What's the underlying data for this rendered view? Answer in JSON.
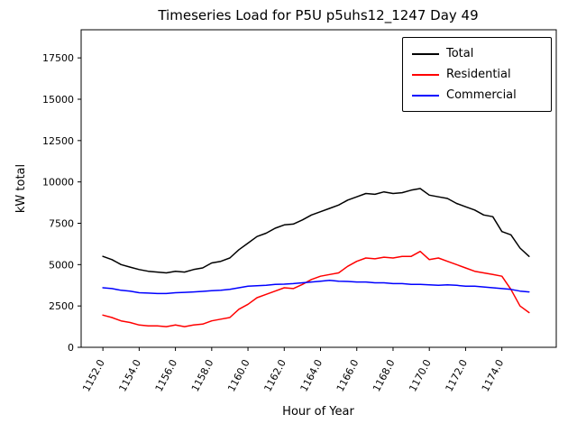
{
  "chart_data": {
    "type": "line",
    "title": "Timeseries Load for P5U p5uhs12_1247  Day 49",
    "xlabel": "Hour of Year",
    "ylabel": "kW total",
    "xlim": [
      1150.8,
      1177.0
    ],
    "ylim": [
      0,
      19200
    ],
    "grid": false,
    "legend_position": "upper right",
    "x_ticks": [
      1152,
      1154,
      1156,
      1158,
      1160,
      1162,
      1164,
      1166,
      1168,
      1170,
      1172,
      1174
    ],
    "x_tick_labels": [
      "1152.0",
      "1154.0",
      "1156.0",
      "1158.0",
      "1160.0",
      "1162.0",
      "1164.0",
      "1166.0",
      "1168.0",
      "1170.0",
      "1172.0",
      "1174.0"
    ],
    "y_ticks": [
      0,
      2500,
      5000,
      7500,
      10000,
      12500,
      15000,
      17500
    ],
    "y_tick_labels": [
      "0",
      "2500",
      "5000",
      "7500",
      "10000",
      "12500",
      "15000",
      "17500"
    ],
    "x": [
      1152.0,
      1152.5,
      1153.0,
      1153.5,
      1154.0,
      1154.5,
      1155.0,
      1155.5,
      1156.0,
      1156.5,
      1157.0,
      1157.5,
      1158.0,
      1158.5,
      1159.0,
      1159.5,
      1160.0,
      1160.5,
      1161.0,
      1161.5,
      1162.0,
      1162.5,
      1163.0,
      1163.5,
      1164.0,
      1164.5,
      1165.0,
      1165.5,
      1166.0,
      1166.5,
      1167.0,
      1167.5,
      1168.0,
      1168.5,
      1169.0,
      1169.5,
      1170.0,
      1170.5,
      1171.0,
      1171.5,
      1172.0,
      1172.5,
      1173.0,
      1173.5,
      1174.0,
      1174.5,
      1175.0,
      1175.5
    ],
    "series": [
      {
        "name": "Total",
        "color": "#000000",
        "values": [
          5500,
          5300,
          5000,
          4850,
          4700,
          4600,
          4550,
          4500,
          4600,
          4550,
          4700,
          4800,
          5100,
          5200,
          5400,
          5900,
          6300,
          6700,
          6900,
          7200,
          7400,
          7450,
          7700,
          8000,
          8200,
          8400,
          8600,
          8900,
          9100,
          9300,
          9250,
          9400,
          9300,
          9350,
          9500,
          9600,
          9200,
          9100,
          9000,
          8700,
          8500,
          8300,
          8000,
          7900,
          7000,
          6800,
          6000,
          5500
        ]
      },
      {
        "name": "Residential",
        "color": "#ff0000",
        "values": [
          1950,
          1800,
          1600,
          1500,
          1350,
          1300,
          1300,
          1250,
          1350,
          1250,
          1350,
          1400,
          1600,
          1700,
          1800,
          2300,
          2600,
          3000,
          3200,
          3400,
          3600,
          3550,
          3800,
          4100,
          4300,
          4400,
          4500,
          4900,
          5200,
          5400,
          5350,
          5450,
          5400,
          5500,
          5500,
          5800,
          5300,
          5400,
          5200,
          5000,
          4800,
          4600,
          4500,
          4400,
          4300,
          3500,
          2500,
          2100
        ]
      },
      {
        "name": "Commercial",
        "color": "#0000ff",
        "values": [
          3600,
          3550,
          3450,
          3400,
          3300,
          3280,
          3250,
          3250,
          3300,
          3320,
          3350,
          3380,
          3420,
          3450,
          3500,
          3600,
          3700,
          3720,
          3750,
          3800,
          3820,
          3850,
          3900,
          3950,
          4000,
          4050,
          4000,
          3980,
          3950,
          3950,
          3900,
          3900,
          3850,
          3850,
          3800,
          3800,
          3780,
          3750,
          3780,
          3750,
          3700,
          3700,
          3650,
          3600,
          3550,
          3500,
          3400,
          3350
        ]
      }
    ]
  }
}
